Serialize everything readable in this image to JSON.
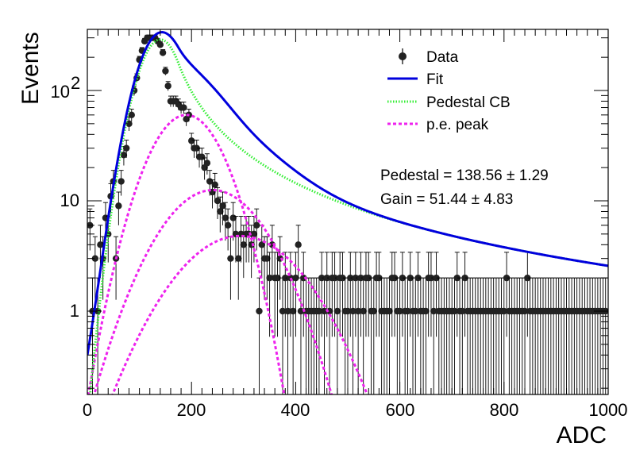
{
  "chart_data": {
    "type": "scatter",
    "xlabel": "ADC",
    "ylabel": "Events",
    "xlim": [
      0,
      1000
    ],
    "ylim": [
      0.18,
      350
    ],
    "log_y": true,
    "grid": false,
    "legend_position": "top-right",
    "x_ticks": [
      "0",
      "200",
      "400",
      "600",
      "800",
      "1000"
    ],
    "y_ticks": [
      {
        "value": 1,
        "base": "1",
        "exp": ""
      },
      {
        "value": 10,
        "base": "10",
        "exp": ""
      },
      {
        "value": 100,
        "base": "10",
        "exp": "2"
      }
    ],
    "legend": [
      {
        "label": "Data",
        "style": "marker"
      },
      {
        "label": "Fit",
        "style": "solid",
        "color": "#0000dd"
      },
      {
        "label": "Pedestal CB",
        "style": "dotted",
        "color": "#33ee33"
      },
      {
        "label": "p.e. peak",
        "style": "dashed",
        "color": "#ee22ee"
      }
    ],
    "annotations": [
      {
        "name": "Pedestal",
        "value": "138.56",
        "error": "1.29"
      },
      {
        "name": "Gain",
        "value": "51.44",
        "error": "4.83"
      }
    ],
    "data": {
      "x": [
        5,
        10,
        15,
        20,
        25,
        30,
        35,
        40,
        45,
        50,
        55,
        60,
        65,
        70,
        75,
        80,
        85,
        90,
        95,
        100,
        105,
        110,
        115,
        120,
        125,
        130,
        135,
        140,
        145,
        150,
        155,
        160,
        165,
        170,
        175,
        180,
        185,
        190,
        195,
        200,
        205,
        210,
        215,
        220,
        225,
        230,
        235,
        240,
        245,
        250,
        255,
        260,
        265,
        270,
        275,
        280,
        285,
        290,
        295,
        300,
        305,
        310,
        315,
        320,
        325,
        330,
        335,
        340,
        345,
        350,
        355,
        360,
        365,
        370,
        375,
        380,
        385,
        390,
        395,
        400,
        405,
        410,
        415,
        420,
        425,
        430,
        435,
        440,
        445,
        450,
        455,
        460,
        465,
        470,
        475,
        480,
        485,
        490,
        495,
        500,
        505,
        510,
        515,
        520,
        525,
        530,
        535,
        540,
        545,
        550,
        555,
        560,
        565,
        570,
        575,
        580,
        585,
        590,
        595,
        600,
        605,
        610,
        615,
        620,
        625,
        630,
        635,
        640,
        645,
        650,
        655,
        660,
        665,
        670,
        675,
        680,
        685,
        690,
        695,
        700,
        705,
        710,
        715,
        720,
        725,
        730,
        735,
        740,
        745,
        750,
        755,
        760,
        765,
        770,
        775,
        780,
        785,
        790,
        795,
        800,
        805,
        810,
        815,
        820,
        825,
        830,
        835,
        840,
        845,
        850,
        855,
        860,
        865,
        870,
        875,
        880,
        885,
        890,
        895,
        900,
        905,
        910,
        915,
        920,
        925,
        930,
        935,
        940,
        945,
        950,
        955,
        960,
        965,
        970,
        975,
        980,
        985,
        990,
        995
      ],
      "y": [
        6,
        1,
        3,
        1,
        4,
        3,
        7,
        5,
        11,
        15,
        3,
        9,
        15,
        26,
        30,
        50,
        60,
        100,
        130,
        190,
        230,
        280,
        300,
        300,
        300,
        300,
        280,
        260,
        220,
        150,
        110,
        80,
        80,
        80,
        75,
        70,
        70,
        55,
        60,
        35,
        30,
        30,
        25,
        25,
        20,
        22,
        15,
        12,
        14,
        10,
        8,
        9,
        7,
        6,
        3,
        7,
        5,
        3,
        5,
        4,
        5,
        5,
        4,
        5,
        6,
        1,
        4,
        3,
        3,
        2,
        4,
        2,
        2,
        3,
        1,
        2,
        1,
        2,
        1,
        2,
        4,
        1,
        2,
        1,
        1,
        1,
        1,
        1,
        1,
        2,
        1,
        2,
        1,
        2,
        2,
        1,
        2,
        2,
        1,
        1,
        2,
        1,
        2,
        1,
        2,
        1,
        2,
        2,
        1,
        1,
        2,
        2,
        1,
        1,
        1,
        1,
        2,
        2,
        1,
        1,
        2,
        1,
        1,
        2,
        1,
        1,
        2,
        1,
        1,
        1,
        2,
        2,
        1,
        2,
        1,
        1,
        1,
        1,
        1,
        1,
        1,
        2,
        1,
        1,
        2,
        1,
        1,
        1,
        1,
        1,
        1,
        1,
        1,
        1,
        1,
        1,
        1,
        1,
        1,
        1,
        2,
        1,
        1,
        1,
        1,
        1,
        1,
        1,
        2,
        1,
        1,
        1,
        1,
        1,
        1,
        1,
        1,
        1,
        1,
        1,
        1,
        1,
        1,
        1,
        1,
        1,
        1,
        1,
        1,
        1,
        1,
        1,
        1,
        1,
        1,
        1,
        1,
        1,
        1
      ]
    },
    "fit_model": {
      "pedestal": {
        "norm": 290,
        "mean": 140,
        "sigma": 35,
        "alpha": 1.0,
        "n": 1.5
      },
      "pe_peaks": [
        {
          "norm": 60,
          "mean": 190,
          "sigma": 55
        },
        {
          "norm": 12.5,
          "mean": 241,
          "sigma": 78
        },
        {
          "norm": 4.8,
          "mean": 293,
          "sigma": 95
        }
      ]
    }
  }
}
